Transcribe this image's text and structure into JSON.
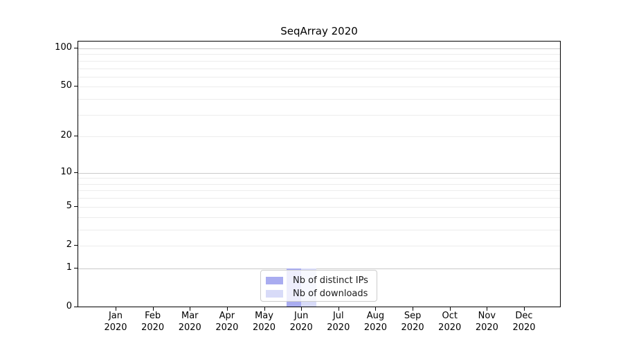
{
  "chart_data": {
    "type": "bar",
    "title": "SeqArray 2020",
    "categories": [
      "Jan 2020",
      "Feb 2020",
      "Mar 2020",
      "Apr 2020",
      "May 2020",
      "Jun 2020",
      "Jul 2020",
      "Aug 2020",
      "Sep 2020",
      "Oct 2020",
      "Nov 2020",
      "Dec 2020"
    ],
    "series": [
      {
        "name": "Nb of distinct IPs",
        "color": "#a9acf0",
        "values": [
          0,
          0,
          0,
          0,
          0,
          1,
          0,
          0,
          0,
          0,
          0,
          0
        ]
      },
      {
        "name": "Nb of downloads",
        "color": "#d8dbf8",
        "values": [
          0,
          0,
          0,
          0,
          0,
          1,
          0,
          0,
          0,
          0,
          0,
          0
        ]
      }
    ],
    "xlabel": "",
    "ylabel": "",
    "yticks": [
      0,
      1,
      2,
      5,
      10,
      20,
      50,
      100
    ],
    "ylim": [
      0,
      115
    ],
    "scale": "log1p",
    "grid": true,
    "legend_position": "bottom-center"
  },
  "colors": {
    "major_grid": "#c9c9c9",
    "minor_grid": "#ececec",
    "axis": "#000000",
    "background": "#ffffff"
  }
}
